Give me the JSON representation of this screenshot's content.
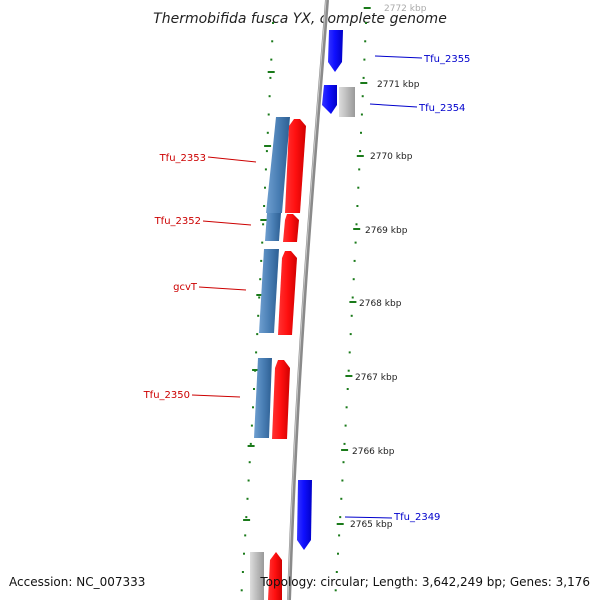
{
  "title": "Thermobifida fusca YX, complete genome",
  "accession_text": "Accession: NC_007333",
  "topology_text": "Topology: circular; Length: 3,642,249 bp; Genes: 3,176",
  "colors": {
    "forward_strand": "#0000ff",
    "reverse_strand": "#ff0000",
    "reverse_rna": "#4a7fb5",
    "pseudo": "#bbbbbb",
    "ticks": "#1a7a1a",
    "backbone": "#888888",
    "label_forward": "#0000cc",
    "label_reverse": "#cc0000"
  },
  "scale_labels": [
    "2772 kbp",
    "2771 kbp",
    "2770 kbp",
    "2769 kbp",
    "2768 kbp",
    "2767 kbp",
    "2766 kbp",
    "2765 kbp"
  ],
  "genes_forward": [
    "Tfu_2355",
    "Tfu_2354",
    "Tfu_2349"
  ],
  "genes_reverse": [
    "Tfu_2353",
    "Tfu_2352",
    "gcvT",
    "Tfu_2350"
  ]
}
